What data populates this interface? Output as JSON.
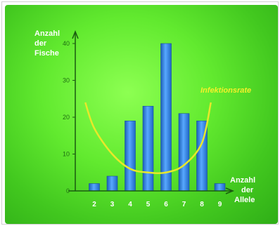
{
  "chart_data": {
    "type": "bar",
    "title": "",
    "ylabel_lines": [
      "Anzahl",
      "der",
      "Fische"
    ],
    "xlabel_lines": [
      "Anzahl",
      "der",
      "Allele"
    ],
    "categories": [
      "2",
      "3",
      "4",
      "5",
      "6",
      "7",
      "8",
      "9"
    ],
    "values": [
      2,
      4,
      19,
      23,
      40,
      21,
      19,
      2
    ],
    "ylim": [
      0,
      40
    ],
    "yticks": [
      0,
      10,
      20,
      30,
      40
    ],
    "grid": false,
    "curve": {
      "name": "Infektionsrate",
      "type": "line",
      "x": [
        1.5,
        2,
        3,
        4,
        5,
        6,
        7,
        8,
        8.5
      ],
      "y": [
        24,
        17,
        10,
        6,
        5,
        5,
        7,
        13,
        24
      ]
    },
    "colors": {
      "background": "#5ee22c",
      "bar": "#2f86e8",
      "curve": "#e8e82a",
      "axis": "#1a5a10"
    }
  }
}
